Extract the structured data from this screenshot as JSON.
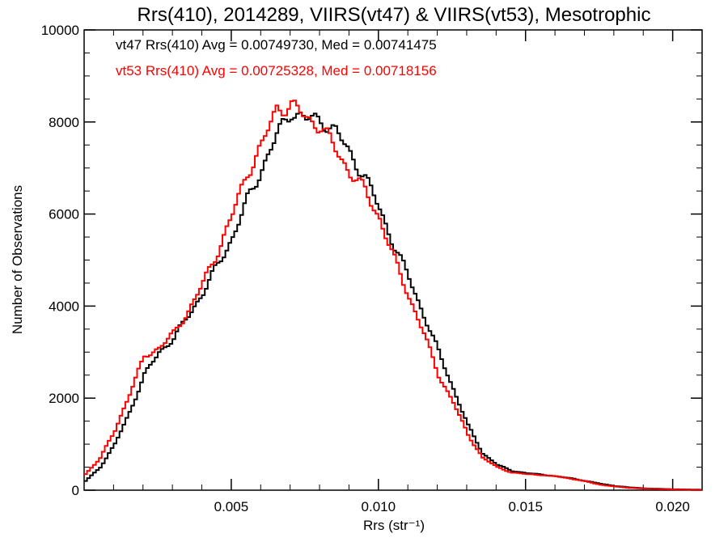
{
  "chart_data": {
    "type": "line",
    "title": "Rrs(410), 2014289, VIIRS(vt47) & VIIRS(vt53), Mesotrophic",
    "xlabel": "Rrs (str⁻¹)",
    "ylabel": "Number of Observations",
    "xlim": [
      0.0,
      0.021
    ],
    "ylim": [
      0,
      10000
    ],
    "xticks": [
      0.005,
      0.01,
      0.015,
      0.02
    ],
    "xtick_labels": [
      "0.005",
      "0.010",
      "0.015",
      "0.020"
    ],
    "yticks": [
      0,
      2000,
      4000,
      6000,
      8000,
      10000
    ],
    "ytick_labels": [
      "0",
      "2000",
      "4000",
      "6000",
      "8000",
      "10000"
    ],
    "grid": false,
    "legend_placement": "top-left",
    "annotations": [
      "vt47 Rrs(410) Avg = 0.00749730, Med = 0.00741475",
      "vt53 Rrs(410) Avg = 0.00725328, Med = 0.00718156"
    ],
    "series": [
      {
        "color": "#000000",
        "x": [
          0.0,
          0.0005,
          0.001,
          0.0015,
          0.002,
          0.0025,
          0.003,
          0.0035,
          0.004,
          0.0045,
          0.005,
          0.0055,
          0.006,
          0.0065,
          0.007,
          0.0075,
          0.008,
          0.0085,
          0.009,
          0.0095,
          0.01,
          0.0105,
          0.011,
          0.0115,
          0.012,
          0.0125,
          0.013,
          0.0135,
          0.014,
          0.0145,
          0.015,
          0.0155,
          0.016,
          0.0165,
          0.017,
          0.0175,
          0.018,
          0.0185,
          0.019,
          0.0195,
          0.02,
          0.021
        ],
        "y": [
          200,
          500,
          1000,
          1700,
          2500,
          3000,
          3300,
          3800,
          4300,
          4900,
          5500,
          6300,
          7000,
          7700,
          8250,
          8050,
          8050,
          7800,
          7300,
          6800,
          6100,
          5300,
          4600,
          3800,
          3000,
          2200,
          1400,
          800,
          550,
          420,
          370,
          340,
          300,
          260,
          200,
          140,
          90,
          60,
          40,
          30,
          20,
          10
        ]
      },
      {
        "color": "#ff0000",
        "x": [
          0.0,
          0.0005,
          0.001,
          0.0015,
          0.002,
          0.0025,
          0.003,
          0.0035,
          0.004,
          0.0045,
          0.005,
          0.0055,
          0.006,
          0.0065,
          0.007,
          0.0075,
          0.008,
          0.0085,
          0.009,
          0.0095,
          0.01,
          0.0105,
          0.011,
          0.0115,
          0.012,
          0.0125,
          0.013,
          0.0135,
          0.014,
          0.0145,
          0.015,
          0.0155,
          0.016,
          0.0165,
          0.017,
          0.0175,
          0.018,
          0.0185,
          0.019,
          0.0195,
          0.02,
          0.021
        ],
        "y": [
          350,
          700,
          1300,
          2100,
          2900,
          3100,
          3400,
          3900,
          4500,
          5200,
          6000,
          6900,
          7500,
          8300,
          8350,
          8100,
          7900,
          7400,
          6900,
          6500,
          5900,
          5000,
          4200,
          3400,
          2500,
          1900,
          1200,
          700,
          500,
          380,
          350,
          330,
          300,
          250,
          190,
          120,
          80,
          50,
          35,
          25,
          15,
          5
        ]
      }
    ]
  }
}
